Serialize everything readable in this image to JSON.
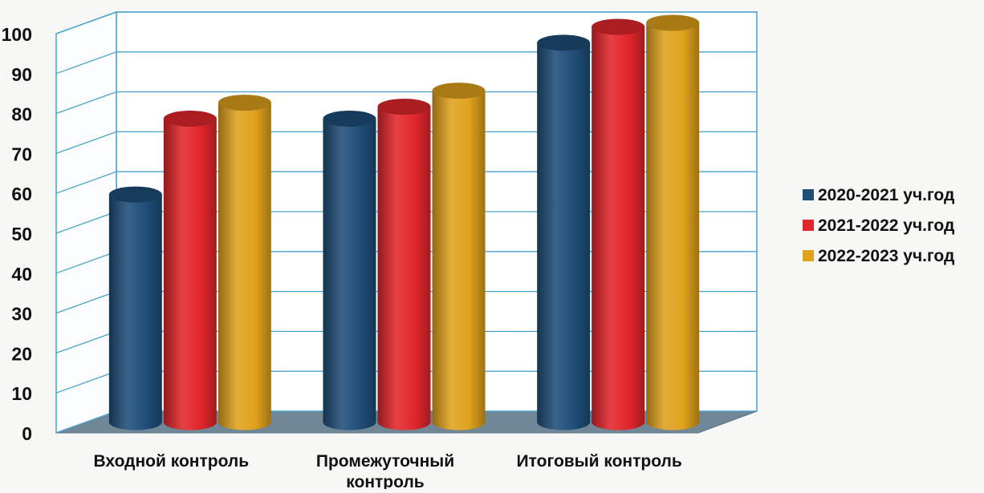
{
  "chart_data": {
    "type": "bar",
    "title": "",
    "xlabel": "",
    "ylabel": "",
    "categories": [
      "Входной контроль",
      "Промежуточный контроль",
      "Итоговый контроль"
    ],
    "series": [
      {
        "name": "2020-2021 уч.год",
        "values": [
          57,
          76,
          95
        ],
        "color": "#1f4e79"
      },
      {
        "name": "2021-2022 уч.год",
        "values": [
          76,
          79,
          99
        ],
        "color": "#e3262b"
      },
      {
        "name": "2022-2023 уч.год",
        "values": [
          80,
          83,
          100
        ],
        "color": "#e0a21d"
      }
    ],
    "ylim": [
      0,
      100
    ],
    "yticks": [
      "0",
      "10",
      "20",
      "30",
      "40",
      "50",
      "60",
      "70",
      "80",
      "90",
      "100"
    ],
    "grid": true,
    "legend_position": "right",
    "style": "3d-cylinder"
  }
}
